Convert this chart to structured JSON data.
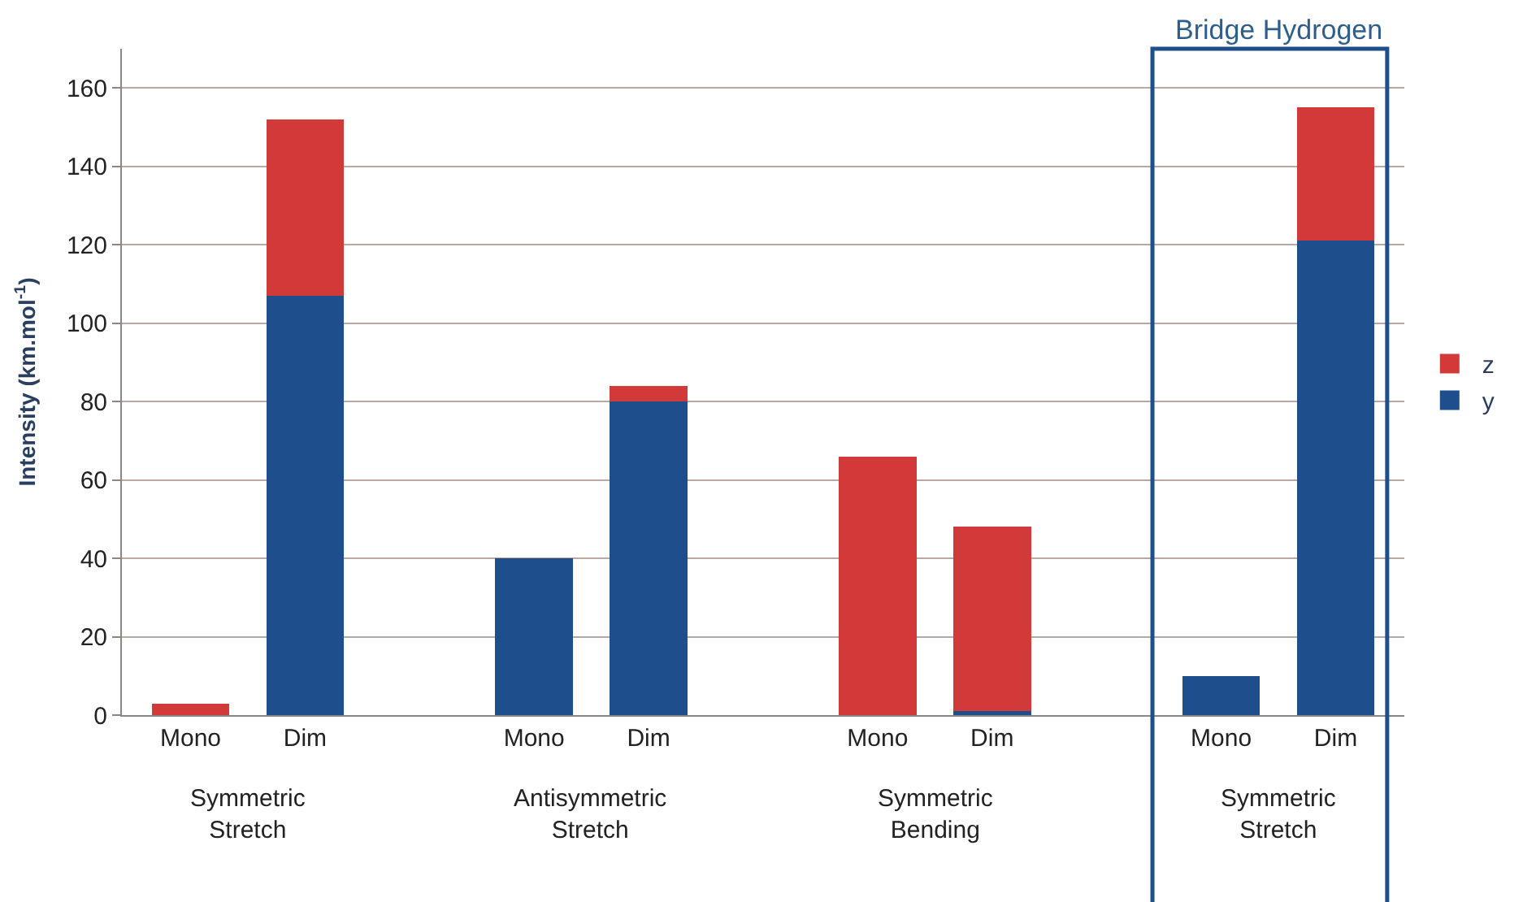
{
  "chart_data": {
    "type": "bar",
    "stacked": true,
    "ylabel": "Intensity (km.mol$^{-1}$)",
    "categories": [
      "Mono",
      "Dim",
      null,
      "Mono",
      "Dim",
      null,
      "Mono",
      "Dim",
      null,
      "Mono",
      "Dim"
    ],
    "series": [
      {
        "name": "y",
        "color": "#1f4e8c",
        "values": [
          0,
          107,
          null,
          40,
          80,
          null,
          0,
          1,
          null,
          10,
          121
        ]
      },
      {
        "name": "z",
        "color": "#d23a3a",
        "values": [
          3,
          45,
          null,
          0,
          4,
          null,
          66,
          47,
          null,
          0,
          34
        ]
      }
    ],
    "ylim": [
      0,
      170
    ],
    "yticks": [
      0,
      20,
      40,
      60,
      80,
      100,
      120,
      140,
      160
    ],
    "grid": "y",
    "legend": "right",
    "annotations": [
      "Symmetric\nStretch",
      "Antisymmetric\nStretch",
      "Symmetric\nBending",
      "Symmetric\nStretch",
      "Bridge Hydrogen"
    ]
  }
}
